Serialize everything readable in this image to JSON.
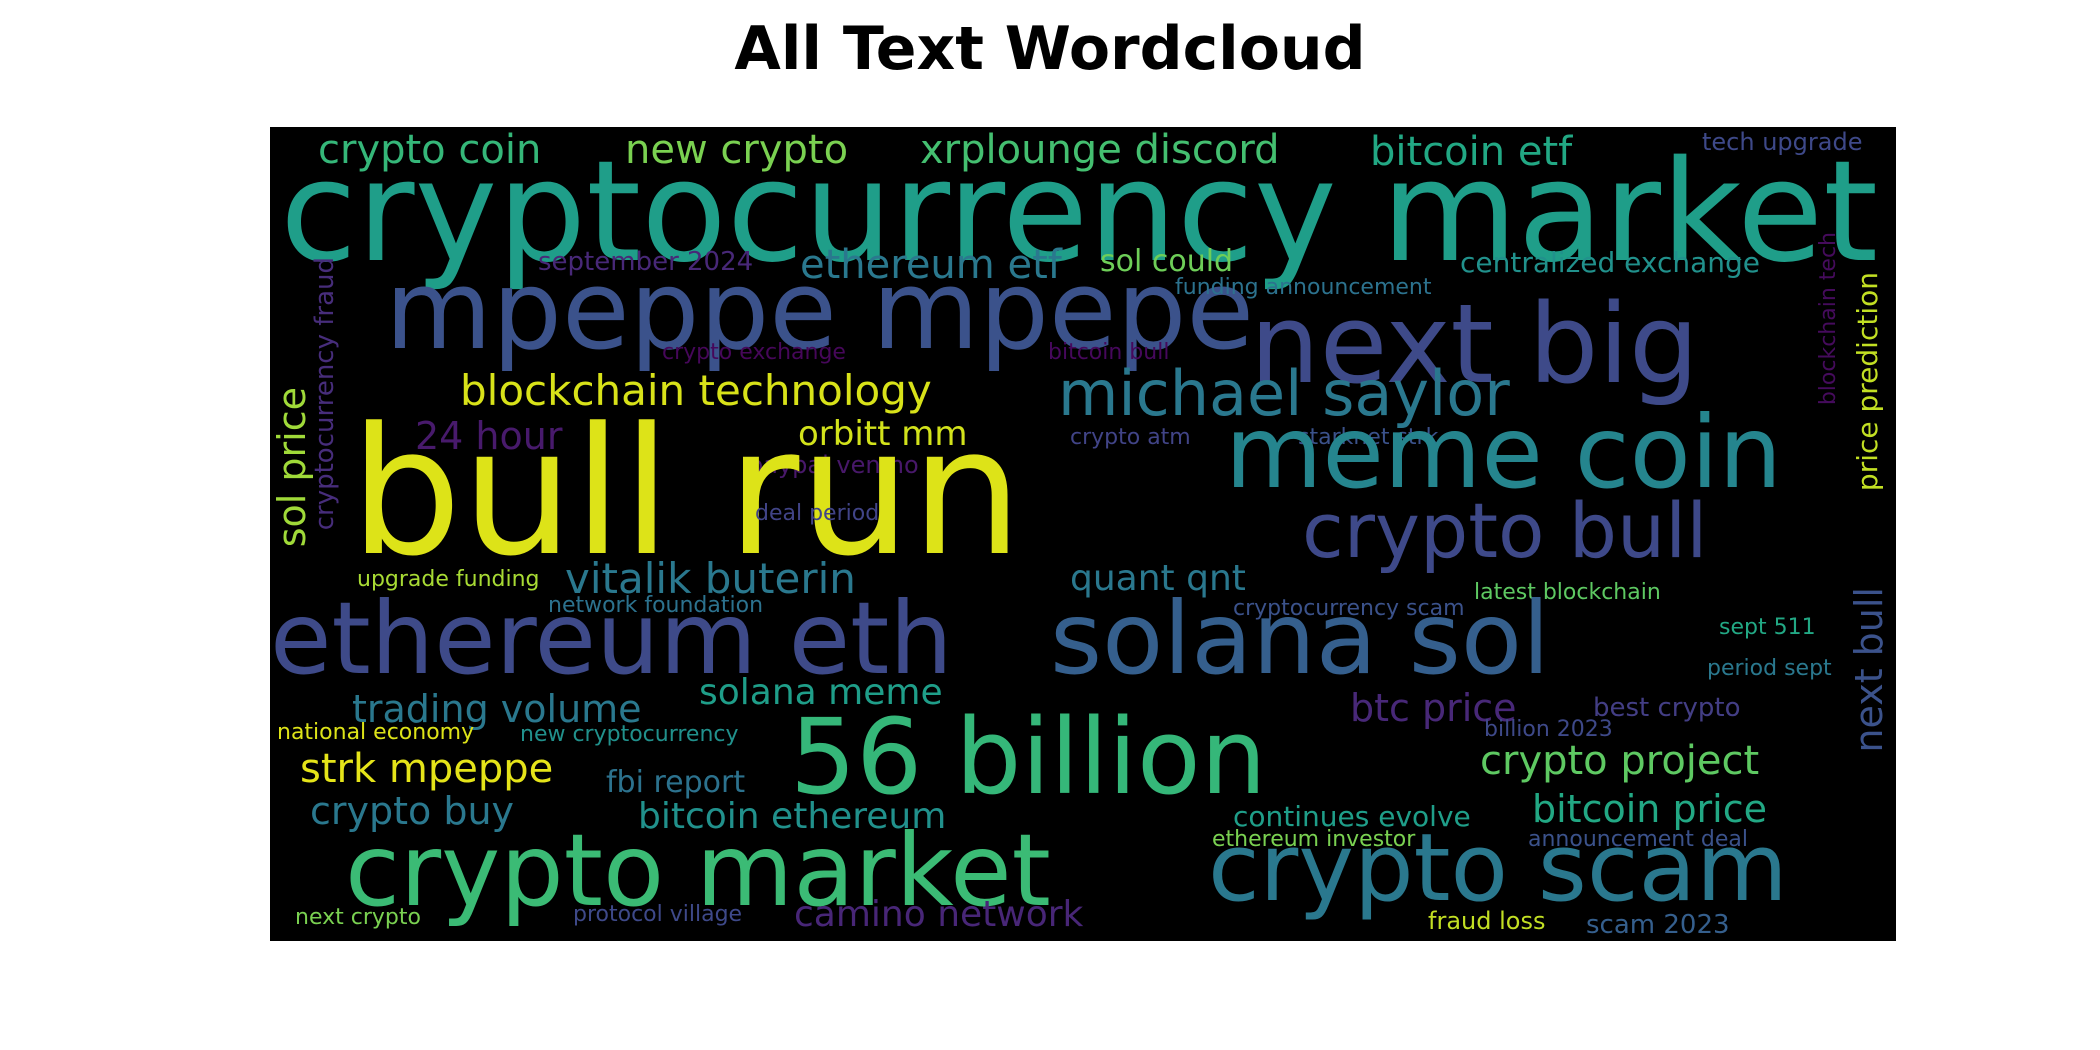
{
  "title": "All Text Wordcloud",
  "colormap": "viridis",
  "background": "#000000",
  "words": [
    {
      "text": "cryptocurrency market",
      "color": "#1f9e89"
    },
    {
      "text": "crypto coin",
      "color": "#35b779"
    },
    {
      "text": "new crypto",
      "color": "#7ad151"
    },
    {
      "text": "xrplounge discord",
      "color": "#44bf70"
    },
    {
      "text": "bitcoin etf",
      "color": "#22a884"
    },
    {
      "text": "tech upgrade",
      "color": "#3e4989"
    },
    {
      "text": "mpeppe mpepe",
      "color": "#3b528b"
    },
    {
      "text": "next big",
      "color": "#3e4a89"
    },
    {
      "text": "september 2024",
      "color": "#482878"
    },
    {
      "text": "ethereum etf",
      "color": "#2a788e"
    },
    {
      "text": "sol could",
      "color": "#6ece58"
    },
    {
      "text": "centralized exchange",
      "color": "#21918c"
    },
    {
      "text": "funding announcement",
      "color": "#2c728e"
    },
    {
      "text": "cryptocurrency fraud",
      "color": "#472d7b"
    },
    {
      "text": "crypto exchange",
      "color": "#46075a"
    },
    {
      "text": "bitcoin bull",
      "color": "#46085c"
    },
    {
      "text": "blockchain technology",
      "color": "#d8e219"
    },
    {
      "text": "michael saylor",
      "color": "#2a788e"
    },
    {
      "text": "blockchain tech",
      "color": "#450b5c"
    },
    {
      "text": "price prediction",
      "color": "#c2df23"
    },
    {
      "text": "sol price",
      "color": "#a0da39"
    },
    {
      "text": "24 hour",
      "color": "#481a6c"
    },
    {
      "text": "orbitt mm",
      "color": "#d2e21b"
    },
    {
      "text": "crypto atm",
      "color": "#414487"
    },
    {
      "text": "starknet strk",
      "color": "#3b528b"
    },
    {
      "text": "paypal venmo",
      "color": "#48186a"
    },
    {
      "text": "bull run",
      "color": "#dde318"
    },
    {
      "text": "meme coin",
      "color": "#25858e"
    },
    {
      "text": "deal period",
      "color": "#414487"
    },
    {
      "text": "crypto bull",
      "color": "#3e4989"
    },
    {
      "text": "vitalik buterin",
      "color": "#2a788e"
    },
    {
      "text": "quant qnt",
      "color": "#2a788e"
    },
    {
      "text": "upgrade funding",
      "color": "#a8db34"
    },
    {
      "text": "latest blockchain",
      "color": "#5ec962"
    },
    {
      "text": "network foundation",
      "color": "#2c728e"
    },
    {
      "text": "cryptocurrency scam",
      "color": "#3b528b"
    },
    {
      "text": "ethereum eth",
      "color": "#3e4a89"
    },
    {
      "text": "solana sol",
      "color": "#355f8d"
    },
    {
      "text": "sept 511",
      "color": "#22a884"
    },
    {
      "text": "period sept",
      "color": "#2a788e"
    },
    {
      "text": "trading volume",
      "color": "#2a788e"
    },
    {
      "text": "solana meme",
      "color": "#1f9e89"
    },
    {
      "text": "btc price",
      "color": "#482878"
    },
    {
      "text": "best crypto",
      "color": "#433e85"
    },
    {
      "text": "next bull",
      "color": "#3b528b"
    },
    {
      "text": "national economy",
      "color": "#dde318"
    },
    {
      "text": "new cryptocurrency",
      "color": "#21918c"
    },
    {
      "text": "billion 2023",
      "color": "#3e4989"
    },
    {
      "text": "56 billion",
      "color": "#35b779"
    },
    {
      "text": "crypto project",
      "color": "#5ec962"
    },
    {
      "text": "strk mpeppe",
      "color": "#e5e419"
    },
    {
      "text": "fbi report",
      "color": "#2c728e"
    },
    {
      "text": "crypto buy",
      "color": "#2a788e"
    },
    {
      "text": "bitcoin ethereum",
      "color": "#21918c"
    },
    {
      "text": "continues evolve",
      "color": "#1f9e89"
    },
    {
      "text": "bitcoin price",
      "color": "#22a884"
    },
    {
      "text": "crypto market",
      "color": "#3bbb75"
    },
    {
      "text": "crypto scam",
      "color": "#2a788e"
    },
    {
      "text": "ethereum investor",
      "color": "#7ad151"
    },
    {
      "text": "announcement deal",
      "color": "#3b528b"
    },
    {
      "text": "camino network",
      "color": "#482677"
    },
    {
      "text": "next crypto",
      "color": "#7ad151"
    },
    {
      "text": "protocol village",
      "color": "#3e4989"
    },
    {
      "text": "fraud loss",
      "color": "#c2df23"
    },
    {
      "text": "scam 2023",
      "color": "#355f8d"
    }
  ]
}
